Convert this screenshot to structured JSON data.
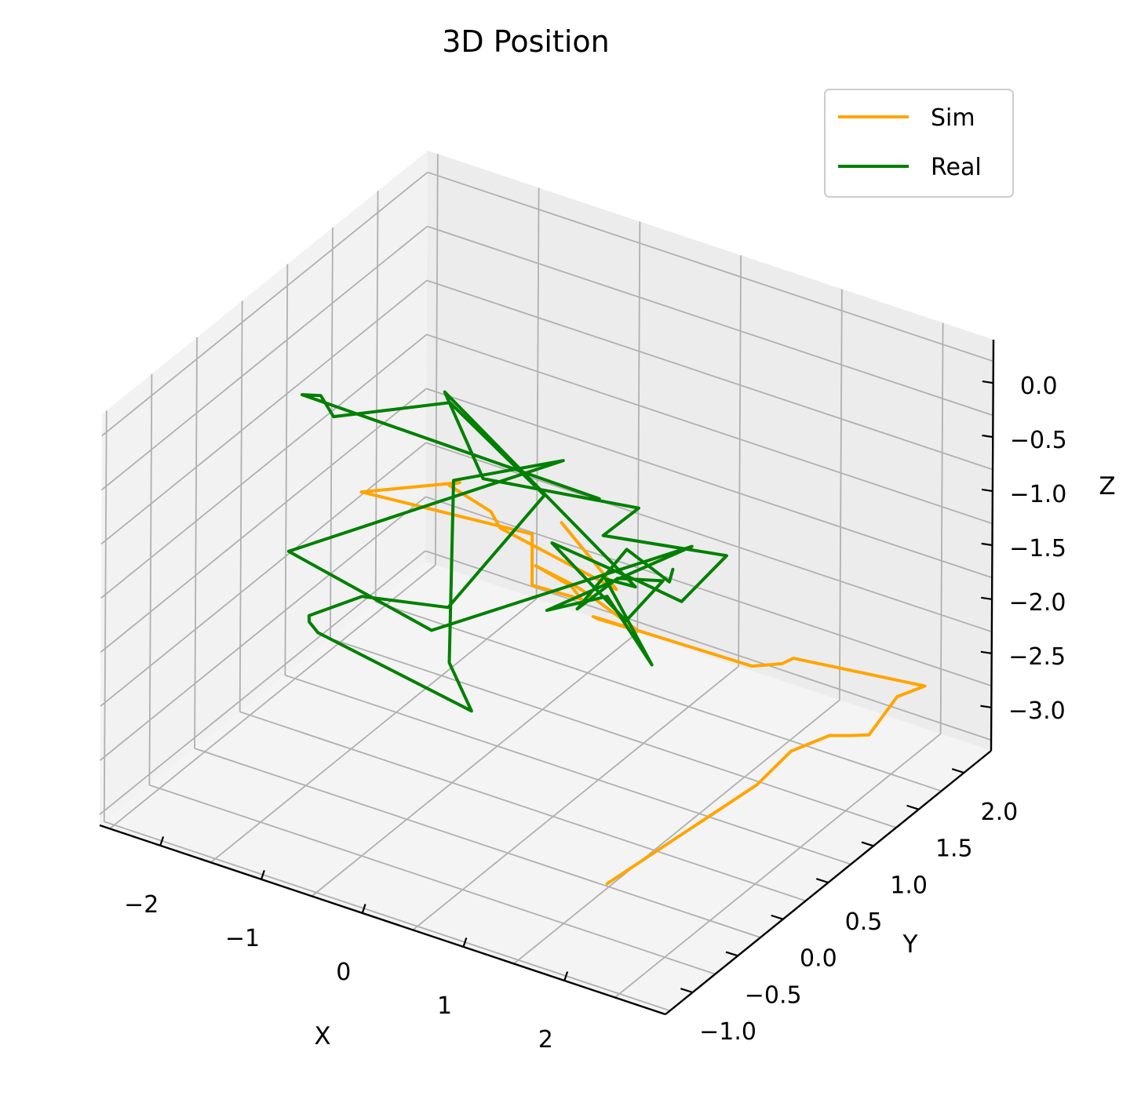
{
  "chart_data": {
    "type": "line",
    "title": "3D Position",
    "xlabel": "X",
    "ylabel": "Y",
    "zlabel": "Z",
    "xlim": [
      -2.6,
      3.0
    ],
    "ylim": [
      -1.3,
      2.3
    ],
    "zlim": [
      -3.4,
      0.4
    ],
    "x_ticks": [
      -2,
      -1,
      0,
      1,
      2
    ],
    "y_ticks": [
      -1.0,
      -0.5,
      0.0,
      0.5,
      1.0,
      1.5,
      2.0
    ],
    "z_ticks": [
      0.0,
      -0.5,
      -1.0,
      -1.5,
      -2.0,
      -2.5,
      -3.0
    ],
    "x_tick_labels": [
      "−2",
      "−1",
      "0",
      "1",
      "2"
    ],
    "y_tick_labels": [
      "−1.0",
      "−0.5",
      "0.0",
      "0.5",
      "1.0",
      "1.5",
      "2.0"
    ],
    "z_tick_labels": [
      "0.0",
      "−0.5",
      "−1.0",
      "−1.5",
      "−2.0",
      "−2.5",
      "−3.0"
    ],
    "grid": true,
    "legend_position": "top-right",
    "series": [
      {
        "name": "Sim",
        "color": "#FFA500",
        "points": [
          [
            1.74,
            -0.54,
            -3.1
          ],
          [
            2.11,
            0.7,
            -2.91
          ],
          [
            2.18,
            1.0,
            -2.78
          ],
          [
            2.22,
            1.38,
            -2.88
          ],
          [
            2.3,
            1.52,
            -2.95
          ],
          [
            2.38,
            1.64,
            -3.0
          ],
          [
            2.46,
            1.86,
            -2.77
          ],
          [
            2.59,
            2.02,
            -2.74
          ],
          [
            1.7,
            1.56,
            -2.45
          ],
          [
            1.51,
            1.65,
            -2.62
          ],
          [
            0.9,
            2.0,
            -3.07
          ],
          [
            0.44,
            0.75,
            -1.91
          ],
          [
            0.37,
            0.88,
            -2.04
          ],
          [
            0.22,
            1.5,
            -2.62
          ],
          [
            -0.12,
            1.32,
            -2.26
          ],
          [
            -0.32,
            1.39,
            -2.29
          ],
          [
            -0.47,
            1.13,
            -1.98
          ],
          [
            -0.51,
            1.57,
            -2.48
          ],
          [
            -0.58,
            1.77,
            -2.76
          ],
          [
            -1.1,
            1.8,
            -2.81
          ],
          [
            -1.27,
            1.99,
            -2.52
          ],
          [
            -2.72,
            1.72,
            -2.4
          ],
          [
            -2.13,
            2.15,
            -2.42
          ],
          [
            -1.8,
            1.66,
            -2.01
          ],
          [
            -1.68,
            1.99,
            -2.44
          ],
          [
            -1.64,
            2.05,
            -2.62
          ],
          [
            -0.64,
            2.22,
            -2.99
          ],
          [
            -0.67,
            1.64,
            -1.99
          ]
        ]
      },
      {
        "name": "Real",
        "color": "#008000",
        "points": [
          [
            -0.36,
            1.71,
            -1.72
          ],
          [
            -2.84,
            1.19,
            -1.18
          ],
          [
            -2.46,
            0.97,
            -0.92
          ],
          [
            -2.43,
            1.08,
            -1.18
          ],
          [
            -2.09,
            1.99,
            -1.56
          ],
          [
            -0.84,
            1.64,
            -1.79
          ],
          [
            -1.43,
            1.24,
            -2.74
          ],
          [
            -2.36,
            1.33,
            -2.99
          ],
          [
            -2.1,
            0.45,
            -2.49
          ],
          [
            -1.84,
            0.16,
            -2.27
          ],
          [
            -1.62,
            0.01,
            -2.2
          ],
          [
            -0.08,
            -0.01,
            -2.43
          ],
          [
            -0.17,
            -0.16,
            -1.91
          ],
          [
            -2.37,
            2.35,
            -2.61
          ],
          [
            -0.3,
            1.24,
            -1.03
          ],
          [
            -2.51,
            0.68,
            -2.18
          ],
          [
            -1.45,
            1.08,
            -2.85
          ],
          [
            -0.1,
            2.45,
            -2.58
          ],
          [
            -0.32,
            1.09,
            -2.32
          ],
          [
            -0.01,
            1.41,
            -2.31
          ],
          [
            0.16,
            1.72,
            -3.1
          ],
          [
            -0.32,
            1.74,
            -2.47
          ],
          [
            -0.22,
            1.96,
            -2.66
          ],
          [
            -1.92,
            1.74,
            -1.24
          ],
          [
            -2.15,
            2.43,
            -2.58
          ],
          [
            -0.45,
            2.25,
            -2.2
          ],
          [
            0.33,
            0.98,
            -1.35
          ],
          [
            0.67,
            1.97,
            -2.1
          ],
          [
            0.36,
            1.82,
            -2.52
          ],
          [
            0.01,
            1.76,
            -2.41
          ],
          [
            -1.67,
            2.66,
            -3.18
          ],
          [
            -0.16,
            1.79,
            -2.84
          ],
          [
            0.06,
            1.95,
            -2.51
          ],
          [
            -0.15,
            1.68,
            -2.37
          ],
          [
            -0.26,
            1.36,
            -2.47
          ],
          [
            -0.13,
            1.76,
            -2.15
          ],
          [
            -0.25,
            2.37,
            -2.9
          ],
          [
            -0.11,
            2.25,
            -2.66
          ]
        ]
      }
    ]
  }
}
